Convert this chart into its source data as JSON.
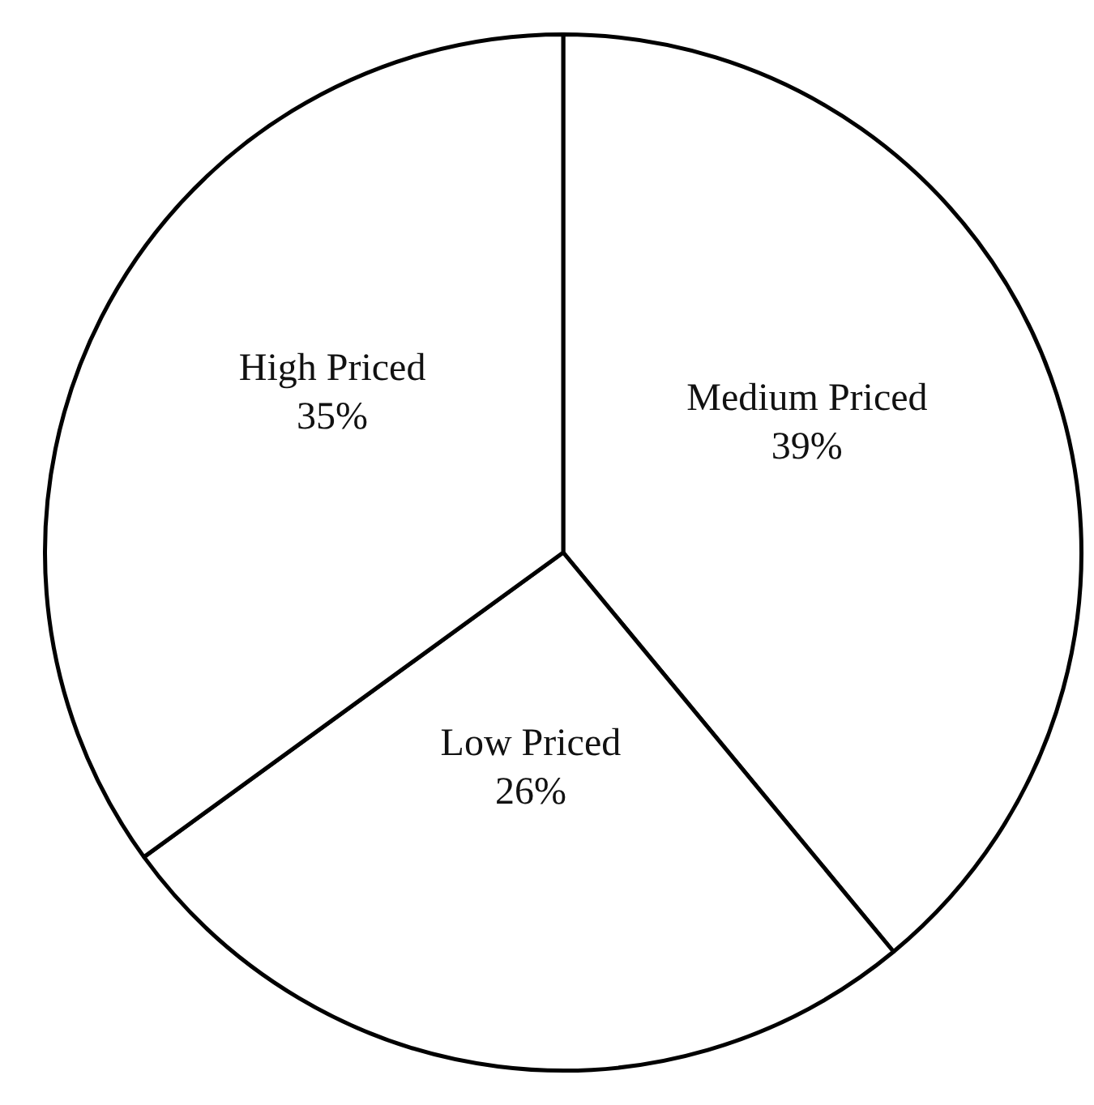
{
  "chart_data": {
    "type": "pie",
    "categories": [
      "Medium Priced",
      "Low Priced",
      "High Priced"
    ],
    "values": [
      39,
      26,
      35
    ],
    "colors": [
      "#ffffff",
      "#ffffff",
      "#ffffff"
    ],
    "value_labels": [
      "39%",
      "26%",
      "35%"
    ],
    "legend": false
  }
}
